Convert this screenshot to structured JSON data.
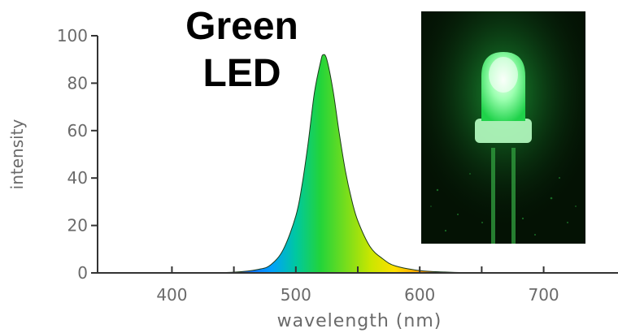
{
  "title_lines": [
    "Green",
    "LED"
  ],
  "chart_data": {
    "type": "area",
    "title": "Green LED",
    "xlabel": "wavelength (nm)",
    "ylabel": "intensity",
    "xlim": [
      340,
      760
    ],
    "ylim": [
      0,
      100
    ],
    "xticks": [
      400,
      500,
      600,
      700
    ],
    "yticks": [
      0,
      20,
      40,
      60,
      80,
      100
    ],
    "x": [
      380,
      420,
      450,
      470,
      480,
      490,
      500,
      505,
      510,
      515,
      520,
      522,
      525,
      530,
      535,
      540,
      545,
      550,
      560,
      570,
      580,
      600,
      620,
      650,
      700,
      760
    ],
    "y": [
      0,
      0,
      0.3,
      1.5,
      3.5,
      10,
      24,
      37,
      55,
      76,
      89,
      92,
      90,
      77,
      59,
      43,
      31,
      22,
      11,
      6,
      3,
      1,
      0.4,
      0,
      0,
      0
    ],
    "series": [
      {
        "values": [
          0,
          0,
          0.3,
          1.5,
          3.5,
          10,
          24,
          37,
          55,
          76,
          89,
          92,
          90,
          77,
          59,
          43,
          31,
          22,
          11,
          6,
          3,
          1,
          0.4,
          0,
          0,
          0
        ]
      }
    ],
    "grid": false,
    "fill": "spectral gradient (wavelength colors)"
  },
  "photo": {
    "subject": "green-led-photo",
    "background": "#041204",
    "glow": "#2cff5a"
  }
}
